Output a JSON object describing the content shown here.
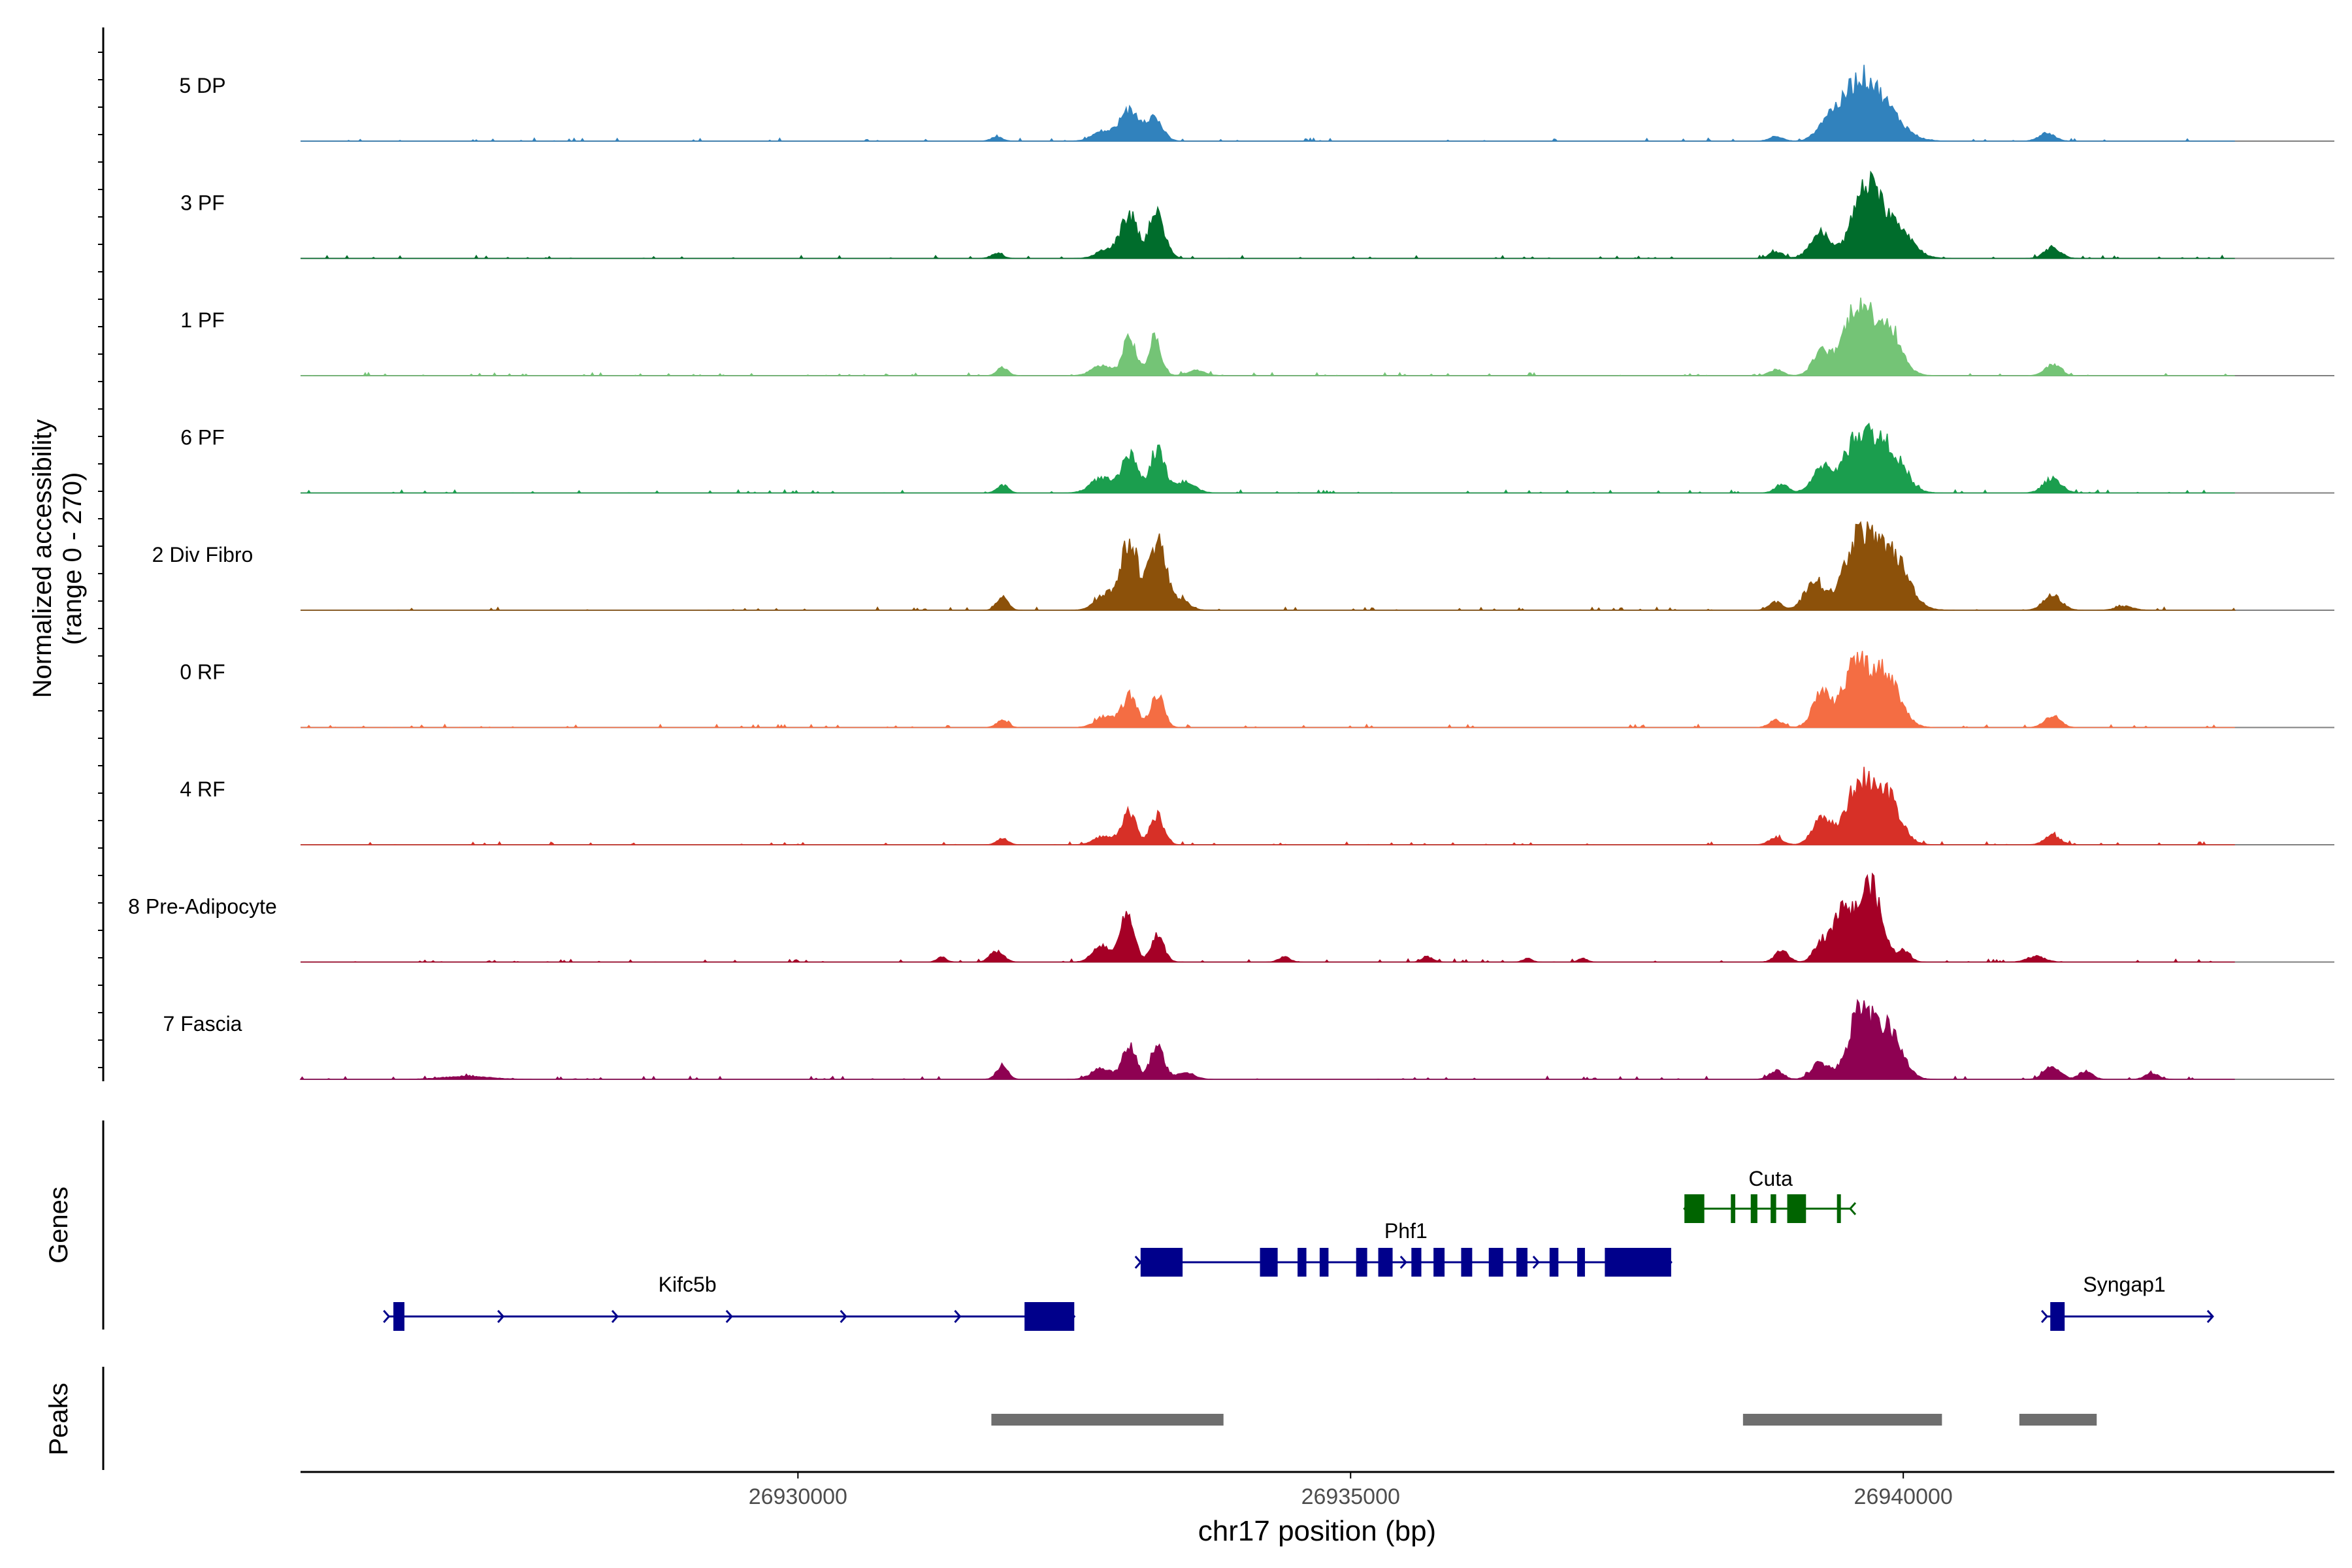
{
  "chart_data": {
    "type": "area",
    "title": "",
    "ylabel_line1": "Normalized accessibility",
    "ylabel_line2": "(range 0 - 270)",
    "y_range": [
      0,
      270
    ],
    "xlabel": "chr17 position (bp)",
    "x_range": [
      26925500,
      26943900
    ],
    "x_ticks": [
      26930000,
      26935000,
      26940000
    ],
    "x_tick_labels": [
      "26930000",
      "26935000",
      "26940000"
    ],
    "baseline_noise": 4,
    "tracks": [
      {
        "name": "5 DP",
        "color": "#3182BD",
        "peaks": [
          [
            26933000,
            82,
            90
          ],
          [
            26933220,
            62,
            75
          ],
          [
            26932750,
            25,
            90
          ],
          [
            26939580,
            128,
            140
          ],
          [
            26939800,
            92,
            170
          ],
          [
            26939320,
            52,
            95
          ],
          [
            26938850,
            12,
            60
          ],
          [
            26941300,
            22,
            70
          ],
          [
            26931800,
            12,
            50
          ]
        ]
      },
      {
        "name": "3 PF",
        "color": "#006D2C",
        "peaks": [
          [
            26933000,
            115,
            75
          ],
          [
            26933250,
            118,
            70
          ],
          [
            26932800,
            25,
            90
          ],
          [
            26939660,
            185,
            120
          ],
          [
            26939250,
            70,
            90
          ],
          [
            26939920,
            95,
            140
          ],
          [
            26938850,
            18,
            60
          ],
          [
            26941350,
            30,
            70
          ],
          [
            26931800,
            14,
            50
          ]
        ]
      },
      {
        "name": "1 PF",
        "color": "#74C476",
        "peaks": [
          [
            26933000,
            103,
            60
          ],
          [
            26933230,
            103,
            55
          ],
          [
            26932750,
            28,
            90
          ],
          [
            26933600,
            14,
            80
          ],
          [
            26939580,
            188,
            120
          ],
          [
            26939850,
            135,
            120
          ],
          [
            26939260,
            62,
            80
          ],
          [
            26938850,
            16,
            60
          ],
          [
            26941350,
            30,
            70
          ],
          [
            26931850,
            22,
            50
          ]
        ]
      },
      {
        "name": "6 PF",
        "color": "#1B9E4E",
        "peaks": [
          [
            26933000,
            100,
            70
          ],
          [
            26933250,
            120,
            65
          ],
          [
            26932750,
            40,
            100
          ],
          [
            26933500,
            30,
            90
          ],
          [
            26939600,
            155,
            130
          ],
          [
            26939870,
            115,
            130
          ],
          [
            26939260,
            65,
            90
          ],
          [
            26938900,
            22,
            60
          ],
          [
            26941350,
            40,
            80
          ],
          [
            26931850,
            22,
            50
          ]
        ]
      },
      {
        "name": "2 Div Fibro",
        "color": "#8C510A",
        "peaks": [
          [
            26933000,
            185,
            75
          ],
          [
            26933250,
            190,
            75
          ],
          [
            26932780,
            45,
            90
          ],
          [
            26933450,
            30,
            80
          ],
          [
            26939600,
            200,
            130
          ],
          [
            26939900,
            150,
            140
          ],
          [
            26939200,
            80,
            90
          ],
          [
            26938850,
            22,
            60
          ],
          [
            26941350,
            40,
            80
          ],
          [
            26931850,
            36,
            50
          ],
          [
            26942000,
            10,
            80
          ]
        ]
      },
      {
        "name": "0 RF",
        "color": "#F46D43",
        "peaks": [
          [
            26933000,
            86,
            65
          ],
          [
            26933250,
            90,
            60
          ],
          [
            26932780,
            30,
            90
          ],
          [
            26939580,
            172,
            120
          ],
          [
            26939850,
            140,
            120
          ],
          [
            26939260,
            90,
            80
          ],
          [
            26938850,
            20,
            60
          ],
          [
            26941350,
            32,
            70
          ],
          [
            26931850,
            20,
            50
          ]
        ]
      },
      {
        "name": "4 RF",
        "color": "#D73027",
        "peaks": [
          [
            26933000,
            90,
            60
          ],
          [
            26933250,
            82,
            60
          ],
          [
            26932780,
            25,
            90
          ],
          [
            26939600,
            162,
            120
          ],
          [
            26939850,
            130,
            120
          ],
          [
            26939260,
            75,
            80
          ],
          [
            26938850,
            20,
            60
          ],
          [
            26941350,
            25,
            70
          ],
          [
            26931850,
            16,
            50
          ]
        ]
      },
      {
        "name": "8 Pre-Adipocyte",
        "color": "#A50026",
        "peaks": [
          [
            26932980,
            130,
            60
          ],
          [
            26933250,
            70,
            60
          ],
          [
            26932750,
            45,
            80
          ],
          [
            26939700,
            210,
            100
          ],
          [
            26939450,
            140,
            90
          ],
          [
            26939250,
            50,
            60
          ],
          [
            26938900,
            30,
            60
          ],
          [
            26940000,
            30,
            60
          ],
          [
            26941200,
            15,
            80
          ],
          [
            26931800,
            30,
            60
          ],
          [
            26931300,
            15,
            40
          ],
          [
            26934400,
            14,
            50
          ],
          [
            26935700,
            14,
            50
          ],
          [
            26936600,
            10,
            40
          ],
          [
            26937100,
            10,
            40
          ]
        ]
      },
      {
        "name": "7 Fascia",
        "color": "#8E0152",
        "peaks": [
          [
            26933000,
            92,
            60
          ],
          [
            26933250,
            92,
            60
          ],
          [
            26932750,
            30,
            90
          ],
          [
            26933500,
            20,
            80
          ],
          [
            26939620,
            190,
            110
          ],
          [
            26939880,
            130,
            110
          ],
          [
            26939250,
            45,
            80
          ],
          [
            26938850,
            24,
            60
          ],
          [
            26941350,
            36,
            70
          ],
          [
            26941650,
            22,
            60
          ],
          [
            26942250,
            16,
            60
          ],
          [
            26931850,
            40,
            50
          ],
          [
            26927000,
            8,
            200
          ]
        ]
      }
    ],
    "genes_label": "Genes",
    "genes": [
      {
        "name": "Kifc5b",
        "color": "#00008B",
        "row": 3,
        "start": 26926300,
        "end": 26932500,
        "strand": "+",
        "exons": [
          [
            26926340,
            26926440
          ],
          [
            26932050,
            26932500
          ]
        ],
        "label_pos": 26929000
      },
      {
        "name": "Phf1",
        "color": "#00008B",
        "row": 2,
        "start": 26933100,
        "end": 26937900,
        "strand": "+",
        "exons": [
          [
            26933100,
            26933480
          ],
          [
            26934180,
            26934340
          ],
          [
            26934520,
            26934600
          ],
          [
            26934720,
            26934800
          ],
          [
            26935050,
            26935150
          ],
          [
            26935250,
            26935380
          ],
          [
            26935550,
            26935640
          ],
          [
            26935750,
            26935850
          ],
          [
            26936000,
            26936100
          ],
          [
            26936250,
            26936380
          ],
          [
            26936500,
            26936600
          ],
          [
            26936800,
            26936880
          ],
          [
            26937050,
            26937120
          ],
          [
            26937300,
            26937900
          ]
        ],
        "label_pos": 26935500
      },
      {
        "name": "Cuta",
        "color": "#006400",
        "row": 1,
        "start": 26938020,
        "end": 26939520,
        "strand": "-",
        "exons": [
          [
            26938020,
            26938200
          ],
          [
            26938440,
            26938480
          ],
          [
            26938620,
            26938680
          ],
          [
            26938800,
            26938850
          ],
          [
            26938950,
            26939120
          ],
          [
            26939400,
            26939430
          ]
        ],
        "label_pos": 26938800
      },
      {
        "name": "Syngap1",
        "color": "#00008B",
        "row": 3,
        "start": 26941300,
        "end": 26942800,
        "strand": "+",
        "exons": [
          [
            26941330,
            26941460
          ]
        ],
        "label_pos": 26942000
      }
    ],
    "peaks_label": "Peaks",
    "peak_regions": [
      [
        26931750,
        26933850
      ],
      [
        26938550,
        26940350
      ],
      [
        26941050,
        26941750
      ]
    ]
  }
}
